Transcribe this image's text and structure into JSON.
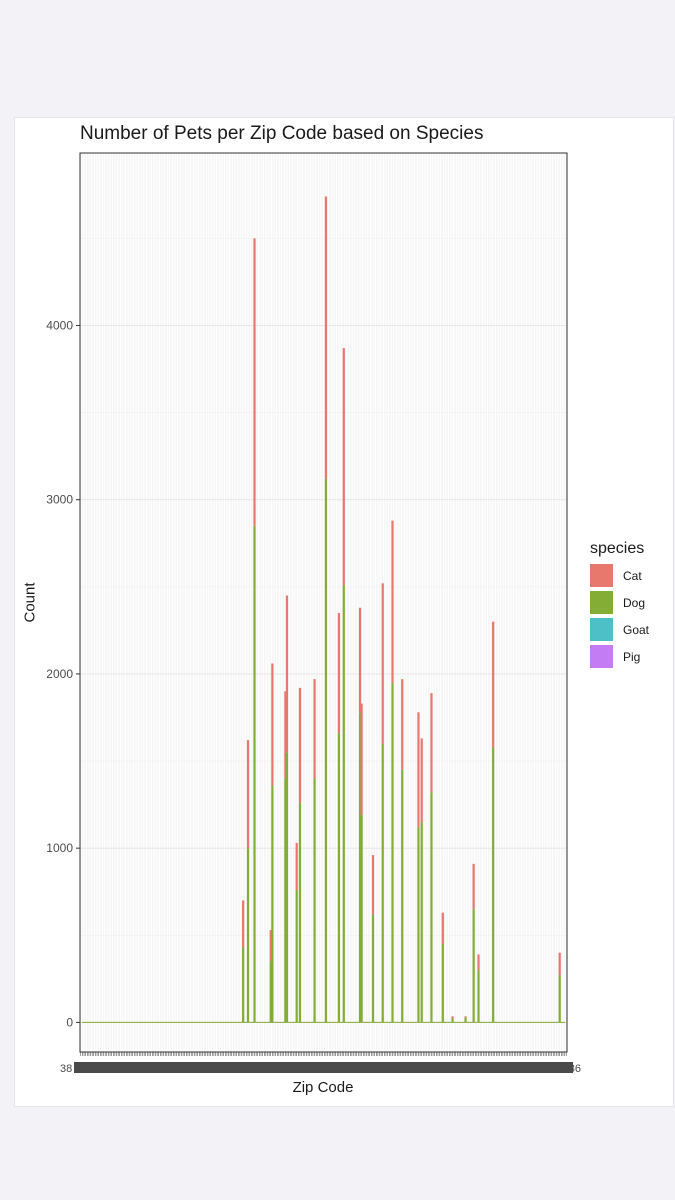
{
  "chart_data": {
    "type": "bar",
    "stacked": true,
    "title": "Number of Pets per Zip Code based on Species",
    "xlabel": "Zip Code",
    "ylabel": "Count",
    "ylim": [
      -170,
      4990
    ],
    "yticks": [
      0,
      1000,
      2000,
      3000,
      4000
    ],
    "grid": true,
    "legend": {
      "title": "species",
      "placement": "right",
      "entries": [
        {
          "name": "Cat",
          "color": "#e8776e"
        },
        {
          "name": "Dog",
          "color": "#84ad35"
        },
        {
          "name": "Goat",
          "color": "#4dbfc6"
        },
        {
          "name": "Pig",
          "color": "#c47cf4"
        }
      ]
    },
    "x_edge_labels": {
      "left": "38",
      "right": "86"
    },
    "bars": [
      {
        "i": 100,
        "Dog": 430,
        "Cat": 270
      },
      {
        "i": 103,
        "Dog": 1000,
        "Cat": 620
      },
      {
        "i": 107,
        "Dog": 2850,
        "Cat": 1650
      },
      {
        "i": 117,
        "Dog": 350,
        "Cat": 180
      },
      {
        "i": 118,
        "Dog": 1360,
        "Cat": 700
      },
      {
        "i": 126,
        "Dog": 1400,
        "Cat": 500
      },
      {
        "i": 127,
        "Dog": 1550,
        "Cat": 900
      },
      {
        "i": 133,
        "Dog": 760,
        "Cat": 270
      },
      {
        "i": 135,
        "Dog": 1260,
        "Cat": 660
      },
      {
        "i": 144,
        "Dog": 1400,
        "Cat": 570
      },
      {
        "i": 151,
        "Dog": 3120,
        "Cat": 1620
      },
      {
        "i": 159,
        "Dog": 1660,
        "Cat": 690
      },
      {
        "i": 162,
        "Dog": 2510,
        "Cat": 1360
      },
      {
        "i": 172,
        "Dog": 1780,
        "Cat": 600
      },
      {
        "i": 173,
        "Dog": 1190,
        "Cat": 640
      },
      {
        "i": 180,
        "Dog": 620,
        "Cat": 340
      },
      {
        "i": 186,
        "Dog": 1600,
        "Cat": 920
      },
      {
        "i": 192,
        "Dog": 1950,
        "Cat": 930
      },
      {
        "i": 198,
        "Dog": 1450,
        "Cat": 520
      },
      {
        "i": 208,
        "Dog": 1120,
        "Cat": 660
      },
      {
        "i": 210,
        "Dog": 1150,
        "Cat": 480
      },
      {
        "i": 216,
        "Dog": 1320,
        "Cat": 570
      },
      {
        "i": 223,
        "Dog": 450,
        "Cat": 180
      },
      {
        "i": 229,
        "Dog": 25,
        "Cat": 10
      },
      {
        "i": 237,
        "Dog": 30,
        "Cat": 5
      },
      {
        "i": 242,
        "Dog": 650,
        "Cat": 260
      },
      {
        "i": 245,
        "Dog": 300,
        "Cat": 90
      },
      {
        "i": 254,
        "Dog": 1580,
        "Cat": 720
      },
      {
        "i": 295,
        "Dog": 270,
        "Cat": 130
      }
    ]
  }
}
